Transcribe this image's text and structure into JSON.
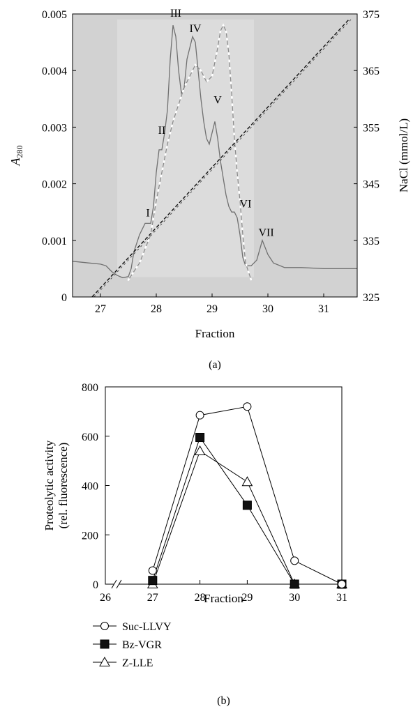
{
  "chart_data": [
    {
      "panel_label": "(a)",
      "type": "line",
      "xlabel": "Fraction",
      "ylabel_left": "A",
      "ylabel_left_subscript": "280",
      "ylabel_right": "NaCl (mmol/L)",
      "xlim": [
        26.5,
        31.6
      ],
      "ylim_left": [
        0,
        0.005
      ],
      "ylim_right": [
        325,
        375
      ],
      "x_ticks": [
        27,
        28,
        29,
        30,
        31
      ],
      "x_tick_labels": [
        "27",
        "28",
        "29",
        "30",
        "31"
      ],
      "y_left_ticks": [
        0,
        0.001,
        0.002,
        0.003,
        0.004,
        0.005
      ],
      "y_left_tick_labels": [
        "0",
        "0.001",
        "0.002",
        "0.003",
        "0.004",
        "0.005"
      ],
      "y_right_ticks": [
        325,
        335,
        345,
        355,
        365,
        375
      ],
      "y_right_tick_labels": [
        "325",
        "335",
        "345",
        "355",
        "365",
        "375"
      ],
      "grid": false,
      "series": [
        {
          "axis": "left",
          "x": [
            26.5,
            26.8,
            27.0,
            27.1,
            27.2,
            27.3,
            27.4,
            27.5,
            27.55,
            27.6,
            27.7,
            27.8,
            27.9,
            27.95,
            28.0,
            28.05,
            28.1,
            28.15,
            28.2,
            28.25,
            28.3,
            28.35,
            28.4,
            28.45,
            28.5,
            28.55,
            28.6,
            28.65,
            28.7,
            28.75,
            28.8,
            28.85,
            28.9,
            28.95,
            29.0,
            29.05,
            29.1,
            29.15,
            29.2,
            29.25,
            29.3,
            29.35,
            29.4,
            29.45,
            29.5,
            29.55,
            29.6,
            29.7,
            29.8,
            29.9,
            30.0,
            30.1,
            30.3,
            30.6,
            31.0,
            31.4,
            31.6
          ],
          "y": [
            0.00063,
            0.0006,
            0.00058,
            0.00055,
            0.00045,
            0.00038,
            0.00034,
            0.00036,
            0.0005,
            0.0008,
            0.0011,
            0.0013,
            0.0013,
            0.0016,
            0.0022,
            0.0026,
            0.0026,
            0.0029,
            0.0033,
            0.0042,
            0.0048,
            0.0046,
            0.004,
            0.0036,
            0.0037,
            0.0042,
            0.0044,
            0.0046,
            0.0045,
            0.004,
            0.0035,
            0.0031,
            0.0028,
            0.0027,
            0.0029,
            0.0031,
            0.0028,
            0.0024,
            0.0021,
            0.0018,
            0.0016,
            0.0015,
            0.0015,
            0.0014,
            0.0011,
            0.0007,
            0.00055,
            0.00055,
            0.00065,
            0.001,
            0.00075,
            0.0006,
            0.00052,
            0.00052,
            0.0005,
            0.0005,
            0.0005
          ],
          "style": "solid grey"
        },
        {
          "axis": "left",
          "x": [
            27.5,
            27.7,
            27.9,
            28.0,
            28.1,
            28.2,
            28.3,
            28.4,
            28.5,
            28.6,
            28.7,
            28.8,
            28.9,
            29.0,
            29.1,
            29.15,
            29.2,
            29.25,
            29.3,
            29.35,
            29.4,
            29.45,
            29.5,
            29.55,
            29.6,
            29.7
          ],
          "y": [
            0.0003,
            0.0006,
            0.0011,
            0.0017,
            0.0022,
            0.0027,
            0.0031,
            0.0034,
            0.0037,
            0.0039,
            0.0041,
            0.004,
            0.0038,
            0.0039,
            0.0044,
            0.0047,
            0.0048,
            0.0047,
            0.0043,
            0.0036,
            0.0028,
            0.0022,
            0.0017,
            0.0011,
            0.0006,
            0.0003
          ],
          "style": "grey with white dots"
        },
        {
          "axis": "right",
          "name": "NaCl gradient",
          "x": [
            26.85,
            31.45
          ],
          "y": [
            325,
            374
          ],
          "style": "dashed black"
        }
      ],
      "annotations": [
        {
          "text": "I",
          "x": 27.85,
          "y": 0.00142
        },
        {
          "text": "II",
          "x": 28.1,
          "y": 0.00288
        },
        {
          "text": "III",
          "x": 28.35,
          "y": 0.00495
        },
        {
          "text": "IV",
          "x": 28.7,
          "y": 0.00468
        },
        {
          "text": "V",
          "x": 29.1,
          "y": 0.00342
        },
        {
          "text": "VI",
          "x": 29.6,
          "y": 0.00158
        },
        {
          "text": "VII",
          "x": 29.97,
          "y": 0.00108
        }
      ]
    },
    {
      "panel_label": "(b)",
      "type": "line",
      "xlabel": "Fraction",
      "ylabel_lines": [
        "Proteolytic activity",
        "(rel. fluorescence)"
      ],
      "xlim": [
        26,
        31
      ],
      "ylim": [
        0,
        800
      ],
      "x_ticks": [
        26,
        27,
        28,
        29,
        30,
        31
      ],
      "x_tick_labels": [
        "26",
        "27",
        "28",
        "29",
        "30",
        "31"
      ],
      "y_ticks": [
        0,
        200,
        400,
        600,
        800
      ],
      "y_tick_labels": [
        "0",
        "200",
        "400",
        "600",
        "800"
      ],
      "axis_break": true,
      "grid": false,
      "legend_position": "bottom-left",
      "categories": [
        27,
        28,
        29,
        30,
        31
      ],
      "series": [
        {
          "name": "Suc-LLVY",
          "marker": "open-circle",
          "values": [
            55,
            685,
            720,
            95,
            0
          ]
        },
        {
          "name": "Bz-VGR",
          "marker": "filled-square",
          "values": [
            15,
            595,
            320,
            0,
            0
          ]
        },
        {
          "name": "Z-LLE",
          "marker": "open-triangle",
          "values": [
            0,
            540,
            415,
            0,
            0
          ]
        }
      ]
    }
  ]
}
